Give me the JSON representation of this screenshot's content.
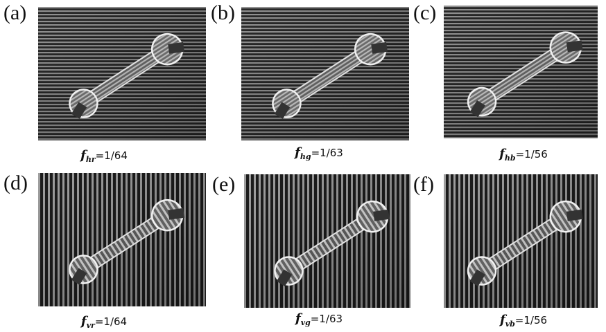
{
  "panels": [
    {
      "label": "(a)",
      "symbol": "f",
      "subscript": "hr",
      "value": "=1/64"
    },
    {
      "label": "(b)",
      "symbol": "f",
      "subscript": "hg",
      "value": "=1/63"
    },
    {
      "label": "(c)",
      "symbol": "f",
      "subscript": "hb",
      "value": "=1/56"
    },
    {
      "label": "(d)",
      "symbol": "f",
      "subscript": "vr",
      "value": "=1/64"
    },
    {
      "label": "(e)",
      "symbol": "f",
      "subscript": "vg",
      "value": "=1/63"
    },
    {
      "label": "(f)",
      "symbol": "f",
      "subscript": "vb",
      "value": "=1/56"
    }
  ]
}
